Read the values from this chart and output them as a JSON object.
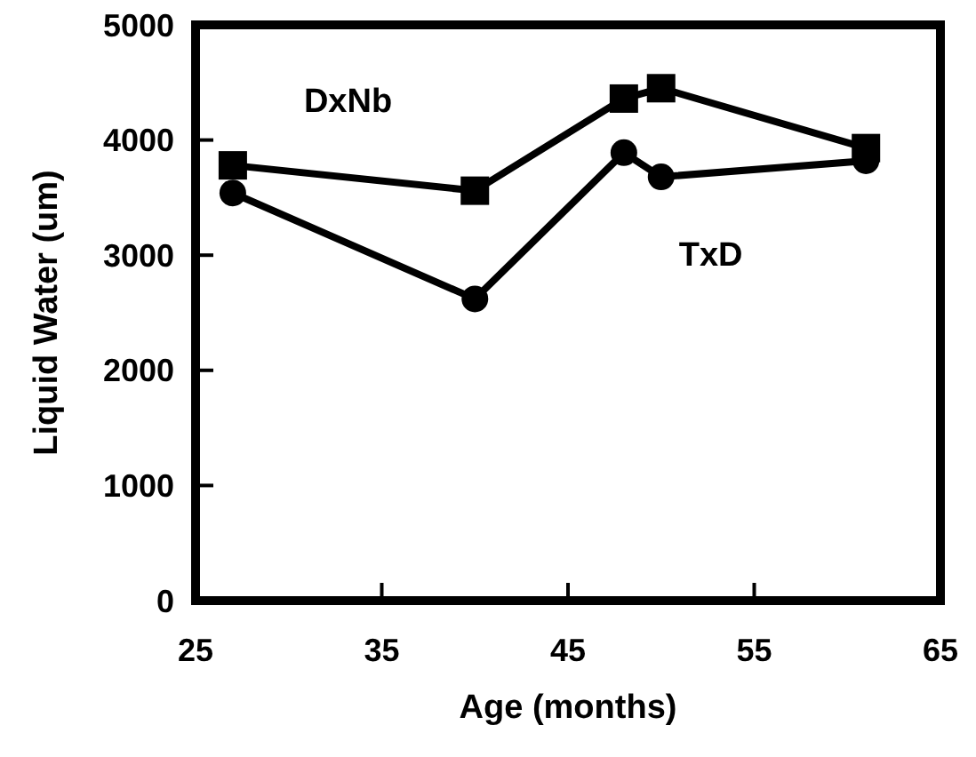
{
  "chart_data": {
    "type": "line",
    "xlabel": "Age (months)",
    "ylabel": "Liquid Water (um)",
    "x": [
      27,
      40,
      48,
      50,
      61
    ],
    "series": [
      {
        "name": "DxNb",
        "color": "#000000",
        "marker": "square",
        "values": [
          3780,
          3560,
          4360,
          4450,
          3930
        ]
      },
      {
        "name": "TxD",
        "color": "#000000",
        "marker": "circle",
        "values": [
          3540,
          2620,
          3890,
          3680,
          3820
        ]
      }
    ],
    "xlim": [
      25,
      65
    ],
    "xticks": [
      25,
      35,
      45,
      55,
      65
    ],
    "ylim": [
      0,
      5000
    ],
    "yticks": [
      0,
      1000,
      2000,
      3000,
      4000,
      5000
    ],
    "grid": false,
    "line_style": "solid"
  }
}
